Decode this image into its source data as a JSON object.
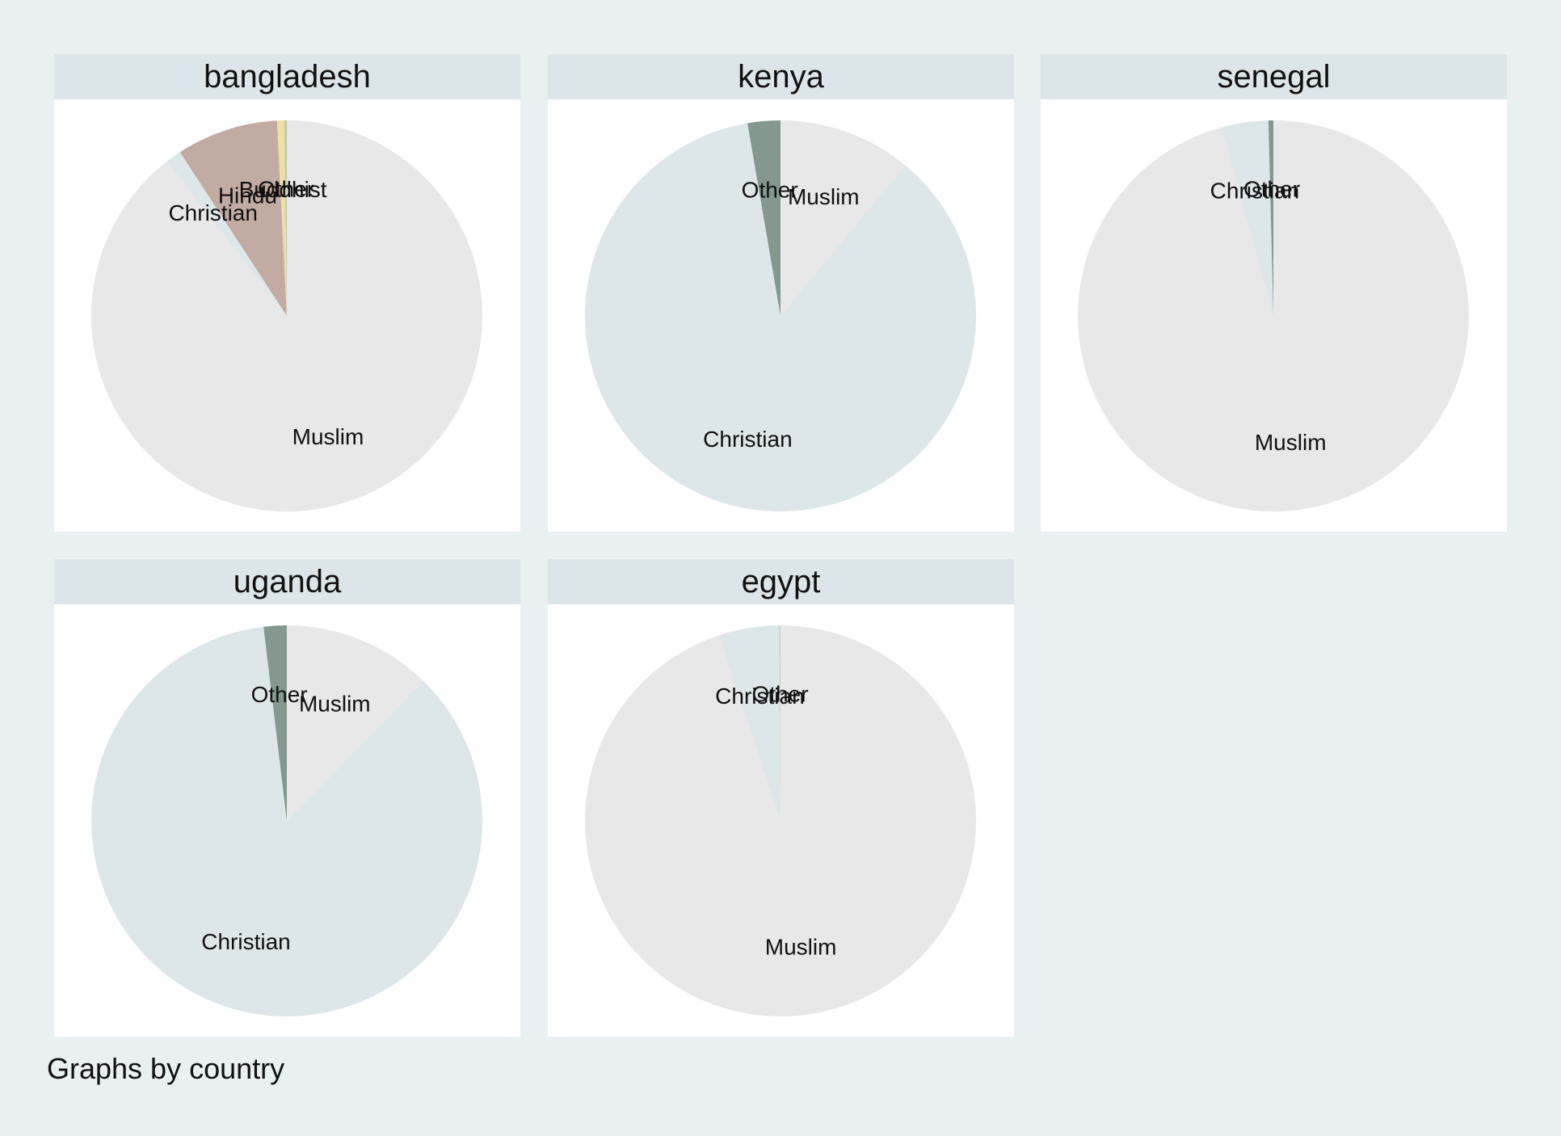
{
  "chart_data": [
    {
      "type": "pie",
      "title": "bangladesh",
      "slices": [
        {
          "label": "Muslim",
          "value": 89.5,
          "color": "#e8e8e8"
        },
        {
          "label": "Christian",
          "value": 1.3,
          "color": "#dde6e8"
        },
        {
          "label": "Hindu",
          "value": 8.4,
          "color": "#c2aba3"
        },
        {
          "label": "Buddhist",
          "value": 0.6,
          "color": "#eedfa6"
        },
        {
          "label": "Other",
          "value": 0.2,
          "color": "#bfc8a3"
        }
      ]
    },
    {
      "type": "pie",
      "title": "kenya",
      "slices": [
        {
          "label": "Muslim",
          "value": 11.0,
          "color": "#e8e8e8"
        },
        {
          "label": "Christian",
          "value": 86.3,
          "color": "#dde6e8"
        },
        {
          "label": "Other",
          "value": 2.7,
          "color": "#84988f"
        }
      ]
    },
    {
      "type": "pie",
      "title": "senegal",
      "slices": [
        {
          "label": "Muslim",
          "value": 95.7,
          "color": "#e8e8e8"
        },
        {
          "label": "Christian",
          "value": 3.9,
          "color": "#dde6e8"
        },
        {
          "label": "Other",
          "value": 0.4,
          "color": "#84988f"
        }
      ]
    },
    {
      "type": "pie",
      "title": "uganda",
      "slices": [
        {
          "label": "Muslim",
          "value": 12.3,
          "color": "#e8e8e8"
        },
        {
          "label": "Christian",
          "value": 85.8,
          "color": "#dde6e8"
        },
        {
          "label": "Other",
          "value": 1.9,
          "color": "#84988f"
        }
      ]
    },
    {
      "type": "pie",
      "title": "egypt",
      "slices": [
        {
          "label": "Muslim",
          "value": 94.9,
          "color": "#e8e8e8"
        },
        {
          "label": "Christian",
          "value": 5.0,
          "color": "#dde6e8"
        },
        {
          "label": "Other",
          "value": 0.1,
          "color": "#c9cdcd"
        }
      ]
    }
  ],
  "footnote": "Graphs by country"
}
